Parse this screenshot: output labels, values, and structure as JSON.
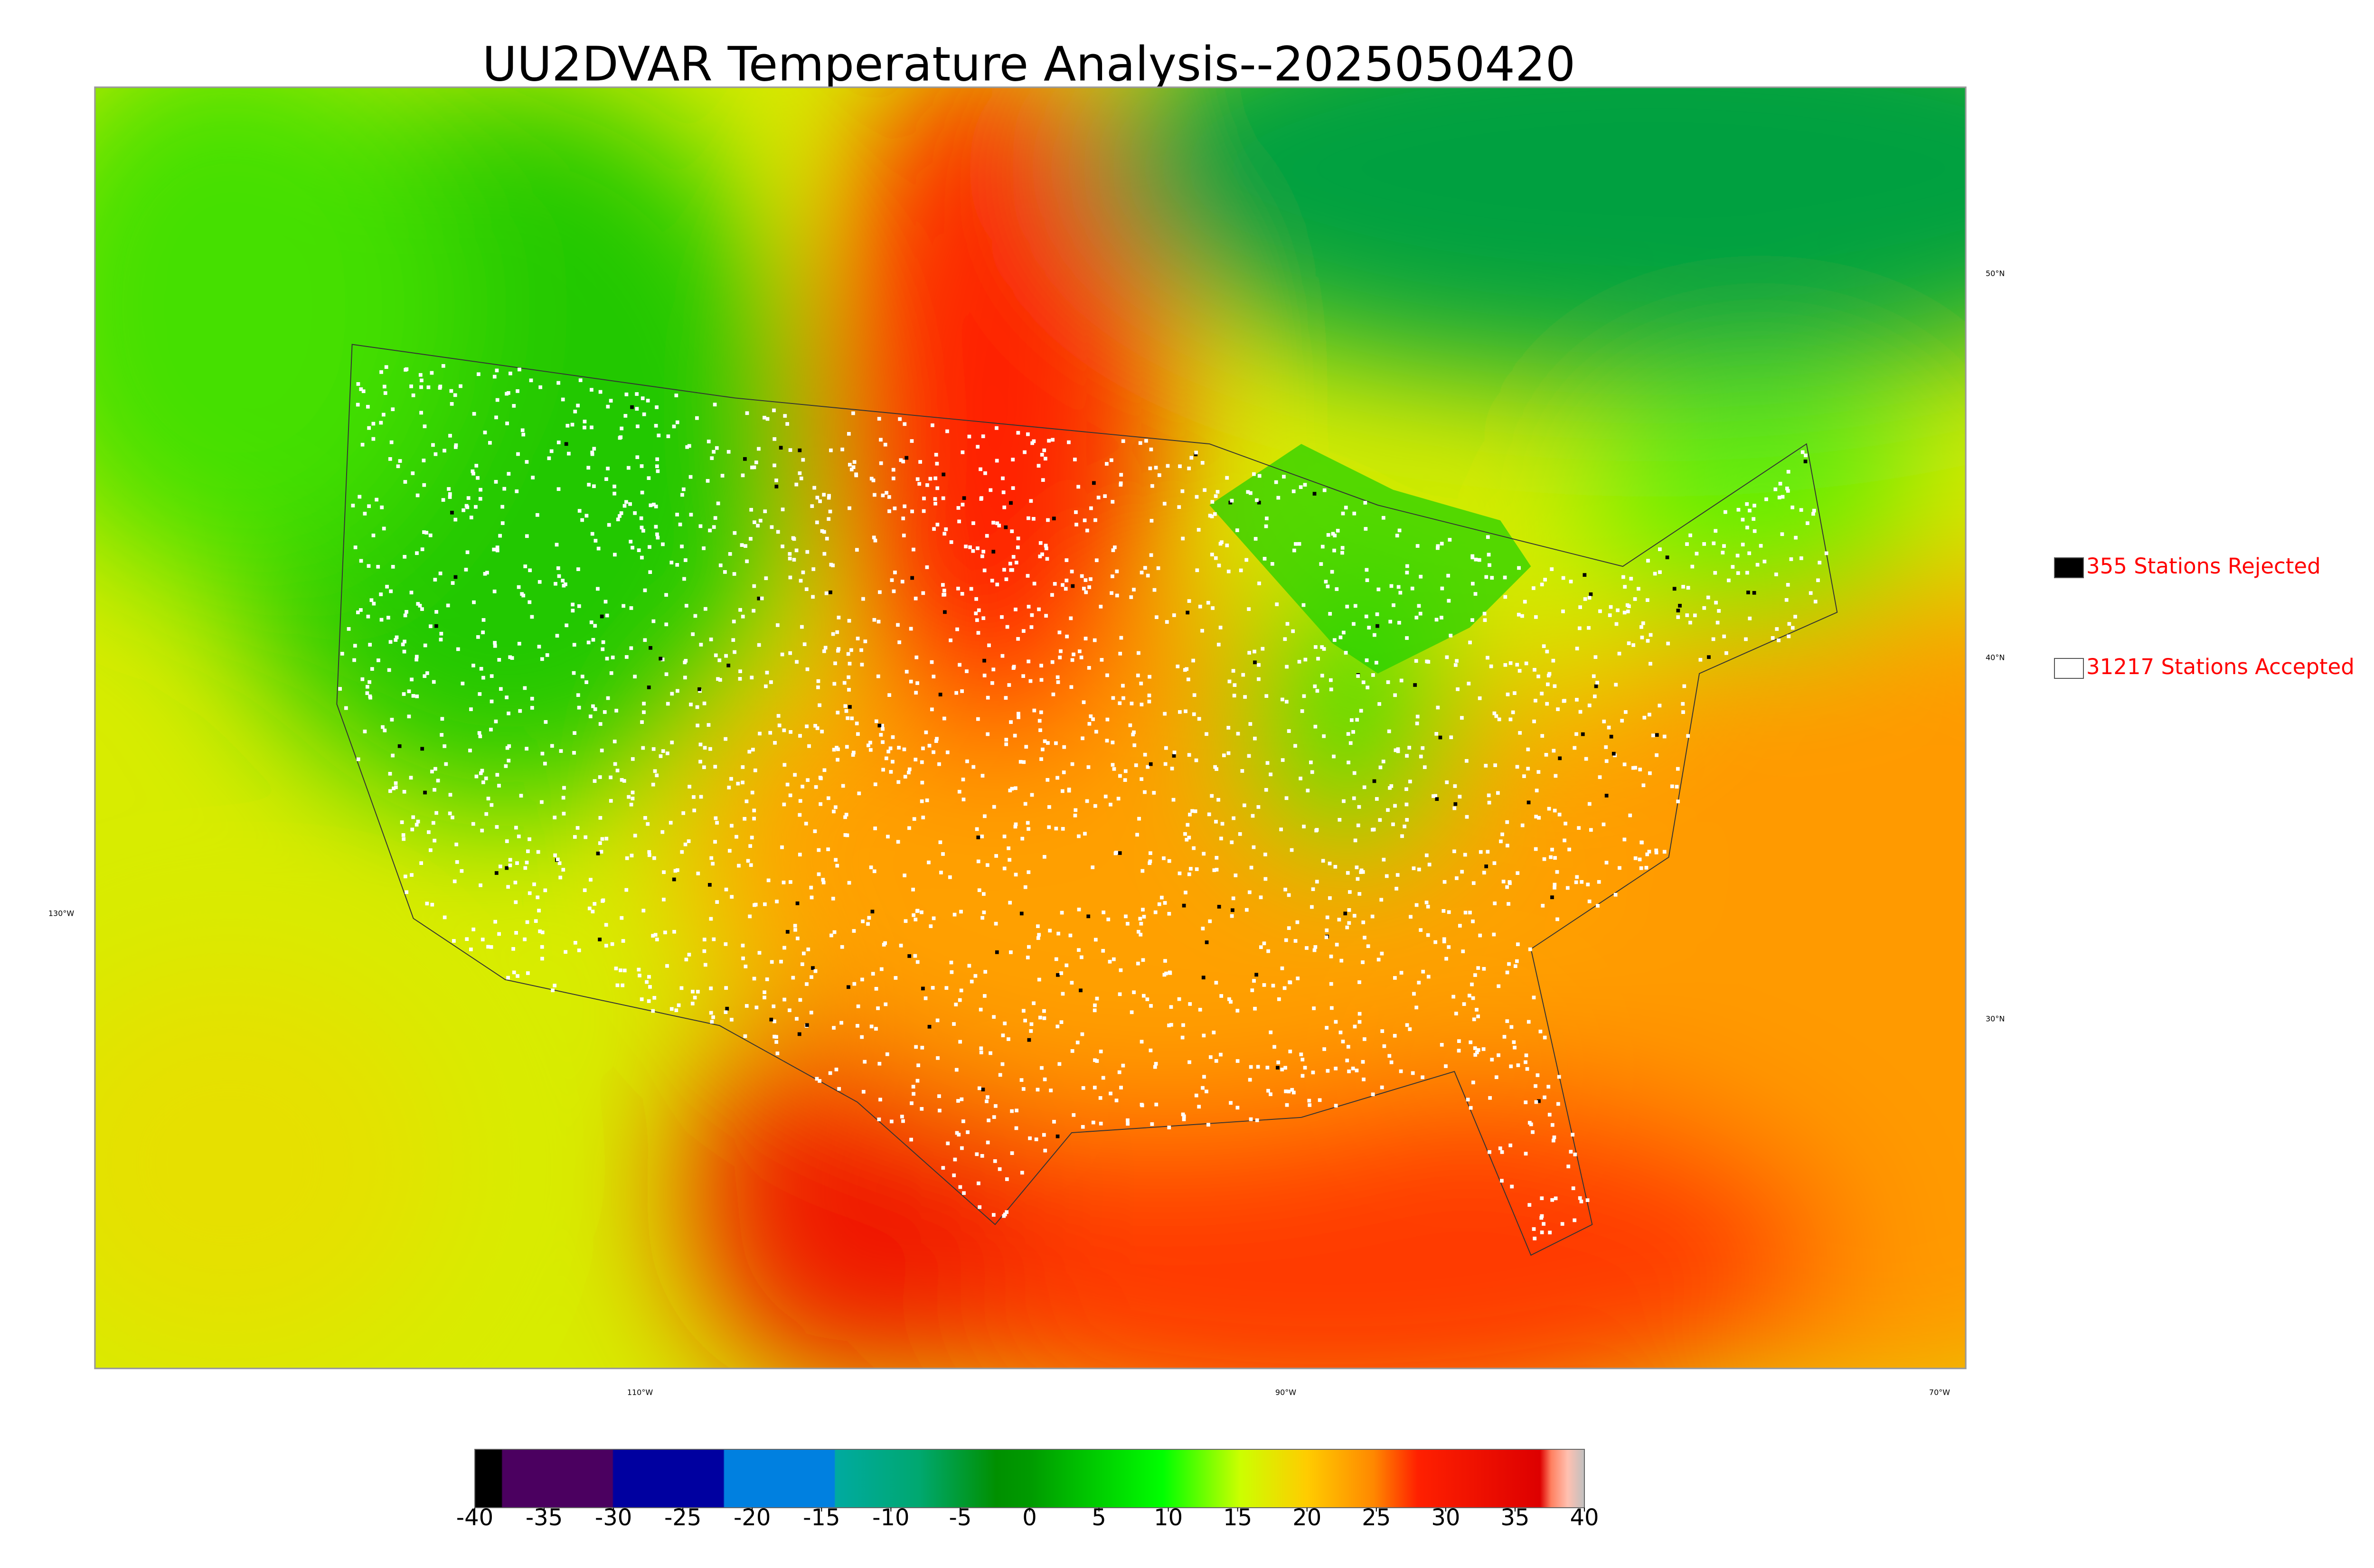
{
  "header": {
    "title": "UU2DVAR Temperature Analysis--2025050420"
  },
  "legend": {
    "items": [
      {
        "label": "355 Stations Rejected",
        "color": "#000000"
      },
      {
        "label": "31217 Stations Accepted",
        "color": "#ffffff"
      }
    ]
  },
  "map": {
    "lat_labels": [
      "50°N",
      "40°N",
      "30°N"
    ],
    "lon_labels": [
      "130°W",
      "110°W",
      "90°W",
      "70°W"
    ]
  },
  "colorbar": {
    "range": [
      -40,
      40
    ],
    "ticks": [
      -40,
      -35,
      -30,
      -25,
      -20,
      -15,
      -10,
      -5,
      0,
      5,
      10,
      15,
      20,
      25,
      30,
      35,
      40
    ]
  }
}
